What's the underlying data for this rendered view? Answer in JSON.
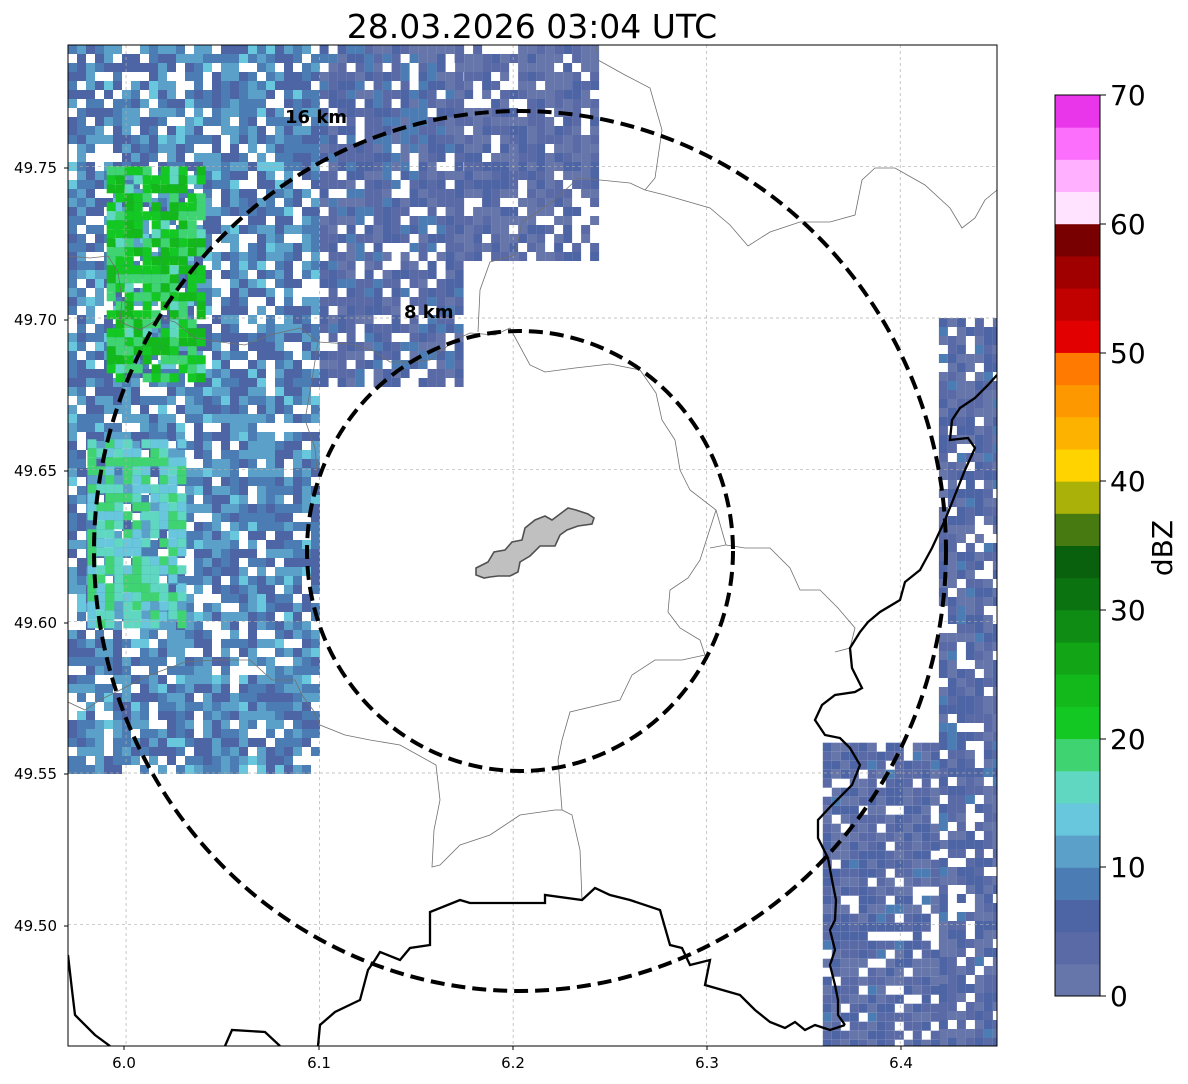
{
  "title": "28.03.2026 03:04 UTC",
  "axes": {
    "lon_ticks": [
      "6.0",
      "6.1",
      "6.2",
      "6.3",
      "6.4"
    ],
    "lat_ticks": [
      "49.75",
      "49.70",
      "49.65",
      "49.60",
      "49.55",
      "49.50"
    ],
    "lon_range": [
      5.97,
      6.45
    ],
    "lat_range": [
      49.46,
      49.79
    ],
    "grid": true
  },
  "radar_center": {
    "lon": 6.2037,
    "lat": 49.6233
  },
  "range_rings": [
    {
      "label": "8 km",
      "radius_km": 8
    },
    {
      "label": "16 km",
      "radius_km": 16
    }
  ],
  "colorbar": {
    "title": "dBZ",
    "tick_labels": [
      "0",
      "10",
      "20",
      "30",
      "40",
      "50",
      "60",
      "70"
    ],
    "min": 0,
    "max": 70,
    "step": 2.5,
    "colors": [
      "#6676ab",
      "#5a6aa6",
      "#4d64a5",
      "#4b7cb3",
      "#5aa0c9",
      "#68c6dd",
      "#60d7c0",
      "#3fd471",
      "#13c822",
      "#13b81a",
      "#12a516",
      "#0f8c14",
      "#0b7410",
      "#09600d",
      "#477a10",
      "#aab20a",
      "#fed300",
      "#feb200",
      "#fe9800",
      "#fe7a00",
      "#e20000",
      "#c10000",
      "#a00000",
      "#780000",
      "#ffe3ff",
      "#ffb0ff",
      "#fc6ffc",
      "#ea36ea"
    ]
  },
  "precipitation_cells": [
    {
      "lon_range": [
        5.97,
        6.1
      ],
      "lat_range": [
        49.55,
        49.79
      ],
      "dbz": 9
    },
    {
      "lon_range": [
        6.1,
        6.17
      ],
      "lat_range": [
        49.68,
        49.79
      ],
      "dbz": 5
    },
    {
      "lon_range": [
        6.17,
        6.24
      ],
      "lat_range": [
        49.72,
        49.79
      ],
      "dbz": 3
    },
    {
      "lon_range": [
        5.99,
        6.04
      ],
      "lat_range": [
        49.68,
        49.75
      ],
      "dbz": 21
    },
    {
      "lon_range": [
        5.98,
        6.03
      ],
      "lat_range": [
        49.6,
        49.66
      ],
      "dbz": 16
    },
    {
      "lon_range": [
        6.42,
        6.45
      ],
      "lat_range": [
        49.46,
        49.7
      ],
      "dbz": 4
    },
    {
      "lon_range": [
        6.36,
        6.42
      ],
      "lat_range": [
        49.46,
        49.56
      ],
      "dbz": 4
    }
  ],
  "colors": {
    "border": "#000000",
    "admin_boundary": "#707070",
    "city_fill": "#c0c0c0",
    "city_edge": "#505050",
    "ring": "#000000"
  }
}
